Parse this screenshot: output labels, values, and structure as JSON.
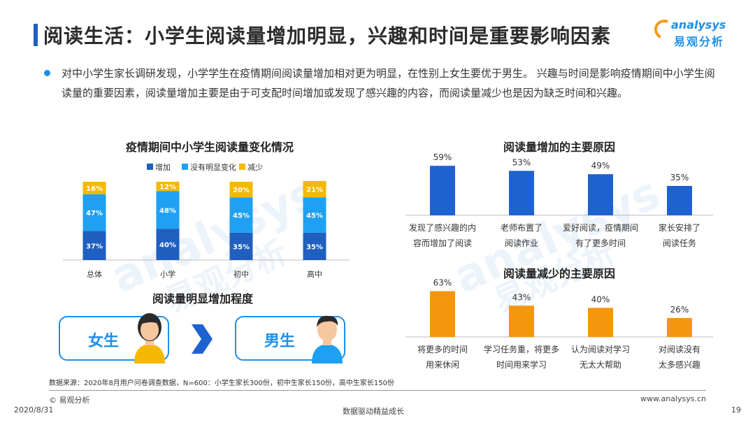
{
  "title": "阅读生活：小学生阅读量增加明显，兴趣和时间是重要影响因素",
  "logo": {
    "en": "analysys",
    "cn": "易观分析"
  },
  "intro": "对中小学生家长调研发现，小学学生在疫情期间阅读量增加相对更为明显，在性别上女生要优于男生。 兴趣与时间是影响疫情期间中小学生阅读量的重要因素，阅读量增加主要是由于可支配时间增加或发现了感兴趣的内容，而阅读量减少也是因为缺乏时间和兴趣。",
  "colors": {
    "increase": "#1f5fbf",
    "no_change": "#1ea1f2",
    "decrease": "#f5b800",
    "orange": "#f5960f",
    "blue": "#1e62d0"
  },
  "chart_data": [
    {
      "type": "bar",
      "stacked": true,
      "title": "疫情期间中小学生阅读量变化情况",
      "categories": [
        "总体",
        "小学",
        "初中",
        "高中"
      ],
      "series": [
        {
          "name": "增加",
          "values": [
            37,
            40,
            35,
            35
          ],
          "labels": [
            "37%",
            "40%",
            "35%",
            "35%"
          ]
        },
        {
          "name": "没有明显变化",
          "values": [
            47,
            48,
            45,
            45
          ],
          "labels": [
            "47%",
            "48%",
            "45%",
            "45%"
          ]
        },
        {
          "name": "减少",
          "values": [
            16,
            12,
            20,
            21
          ],
          "labels": [
            "16%",
            "12%",
            "20%",
            "21%"
          ]
        }
      ],
      "legend": "top-right"
    },
    {
      "type": "bar",
      "title": "阅读量增加的主要原因",
      "categories": [
        "发现了感兴趣的内容而增加了阅读",
        "老师布置了阅读作业",
        "爱好阅读，疫情期间有了更多时间",
        "家长安排了阅读任务"
      ],
      "category_lines": [
        [
          "发现了感兴趣的内",
          "容而增加了阅读"
        ],
        [
          "老师布置了",
          "阅读作业"
        ],
        [
          "爱好阅读，疫情期间",
          "有了更多时间"
        ],
        [
          "家长安排了",
          "阅读任务"
        ]
      ],
      "values": [
        59,
        53,
        49,
        35
      ],
      "labels": [
        "59%",
        "53%",
        "49%",
        "35%"
      ]
    },
    {
      "type": "bar",
      "title": "阅读量减少的主要原因",
      "categories": [
        "将更多的时间用来休闲",
        "学习任务重，将更多时间用来学习",
        "认为阅读对学习无太大帮助",
        "对阅读没有太多感兴趣"
      ],
      "category_lines": [
        [
          "将更多的时间",
          "用来休闲"
        ],
        [
          "学习任务重，将更多",
          "时间用来学习"
        ],
        [
          "认为阅读对学习",
          "无太大帮助"
        ],
        [
          "对阅读没有",
          "太多感兴趣"
        ]
      ],
      "values": [
        63,
        43,
        40,
        26
      ],
      "labels": [
        "63%",
        "43%",
        "40%",
        "26%"
      ]
    }
  ],
  "comparison": {
    "title": "阅读量明显增加程度",
    "girl": "女生",
    "boy": "男生"
  },
  "watermark": {
    "en": "analysys",
    "cn": "易观分析"
  },
  "footer": {
    "source": "数据来源：2020年8月用户问卷调查数据，N=600：小学生家长300份，初中生家长150份，高中生家长150份",
    "copyright": "© 易观分析",
    "date": "2020/8/31",
    "slogan": "数据驱动精益成长",
    "url": "www.analysys.cn",
    "page": "19"
  }
}
